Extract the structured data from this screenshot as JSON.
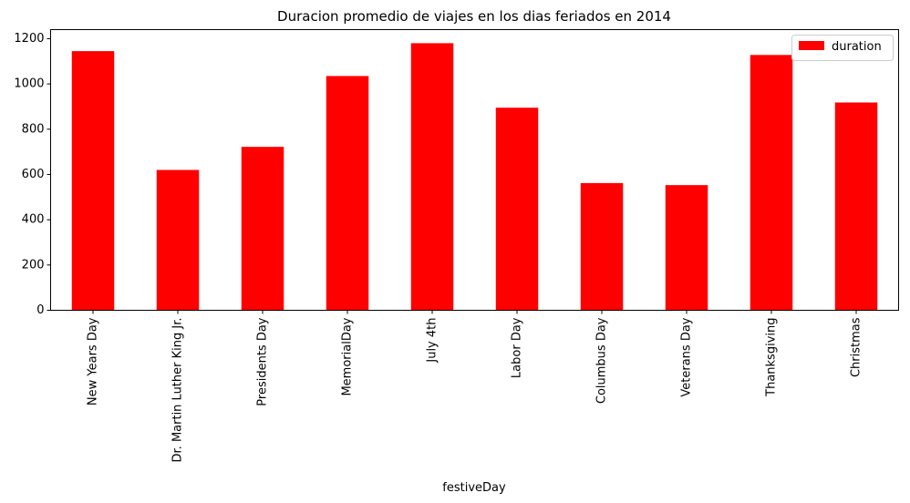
{
  "chart_data": {
    "type": "bar",
    "title": "Duracion promedio de viajes en los dias feriados en 2014",
    "xlabel": "festiveDay",
    "ylabel": "",
    "categories": [
      "New Years Day",
      "Dr. Martin Luther King Jr.",
      "Presidents Day",
      "MemorialDay",
      "July 4th",
      "Labor Day",
      "Columbus Day",
      "Veterans Day",
      "Thanksgiving",
      "Christmas"
    ],
    "series": [
      {
        "name": "duration",
        "values": [
          1145,
          620,
          722,
          1035,
          1180,
          895,
          562,
          553,
          1128,
          918
        ],
        "color": "#ff0000"
      }
    ],
    "yticks": [
      "0",
      "200",
      "400",
      "600",
      "800",
      "1000",
      "1200"
    ],
    "ylim": [
      0,
      1240
    ],
    "grid": false,
    "legend": "top-right"
  }
}
